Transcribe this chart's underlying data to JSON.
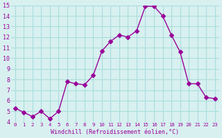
{
  "x": [
    0,
    1,
    2,
    3,
    4,
    5,
    6,
    7,
    8,
    9,
    10,
    11,
    12,
    13,
    14,
    15,
    16,
    17,
    18,
    19,
    20,
    21,
    22,
    23
  ],
  "y": [
    5.3,
    4.9,
    4.5,
    5.0,
    4.3,
    5.0,
    7.8,
    7.6,
    7.5,
    8.4,
    10.7,
    11.6,
    12.2,
    12.0,
    12.6,
    14.9,
    14.9,
    14.0,
    12.2,
    10.6,
    7.6,
    7.6,
    6.3,
    6.2
  ],
  "line_color": "#990099",
  "marker": "D",
  "marker_size": 3,
  "bg_color": "#d8f0f0",
  "grid_color": "#aadddd",
  "xlabel": "Windchill (Refroidissement éolien,°C)",
  "xlabel_color": "#990099",
  "tick_color": "#990099",
  "ylim": [
    4,
    15
  ],
  "xlim": [
    -0.5,
    23.5
  ],
  "yticks": [
    4,
    5,
    6,
    7,
    8,
    9,
    10,
    11,
    12,
    13,
    14,
    15
  ],
  "xticks": [
    0,
    1,
    2,
    3,
    4,
    5,
    6,
    7,
    8,
    9,
    10,
    11,
    12,
    13,
    14,
    15,
    16,
    17,
    18,
    19,
    20,
    21,
    22,
    23
  ],
  "xtick_labels": [
    "0",
    "1",
    "2",
    "3",
    "4",
    "5",
    "6",
    "7",
    "8",
    "9",
    "10",
    "11",
    "12",
    "13",
    "14",
    "15",
    "16",
    "17",
    "18",
    "19",
    "20",
    "21",
    "22",
    "23"
  ]
}
